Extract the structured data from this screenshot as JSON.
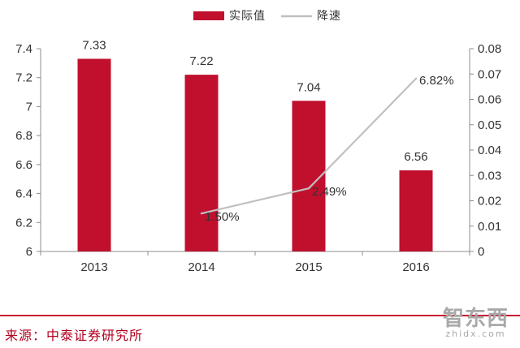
{
  "chart_data": {
    "type": "bar+line",
    "categories": [
      "2013",
      "2014",
      "2015",
      "2016"
    ],
    "series": [
      {
        "name": "实际值",
        "type": "bar",
        "axis": "left",
        "values": [
          7.33,
          7.22,
          7.04,
          6.56
        ],
        "labels": [
          "7.33",
          "7.22",
          "7.04",
          "6.56"
        ],
        "color": "#c0102e"
      },
      {
        "name": "降速",
        "type": "line",
        "axis": "right",
        "x": [
          "2014",
          "2015",
          "2016"
        ],
        "values": [
          0.015,
          0.0249,
          0.0682
        ],
        "labels": [
          "1.50%",
          "2.49%",
          "6.82%"
        ],
        "color": "#c0c0c0"
      }
    ],
    "y_left": {
      "min": 6,
      "max": 7.4,
      "ticks": [
        "6",
        "6.2",
        "6.4",
        "6.6",
        "6.8",
        "7",
        "7.2",
        "7.4"
      ]
    },
    "y_right": {
      "min": 0,
      "max": 0.08,
      "ticks": [
        "0",
        "0.01",
        "0.02",
        "0.03",
        "0.04",
        "0.05",
        "0.06",
        "0.07",
        "0.08"
      ]
    },
    "grid": false,
    "legend": "top-center"
  },
  "source_text": "来源：中泰证券研究所",
  "watermark": {
    "main": "智东西",
    "sub": "zhidx.com"
  }
}
